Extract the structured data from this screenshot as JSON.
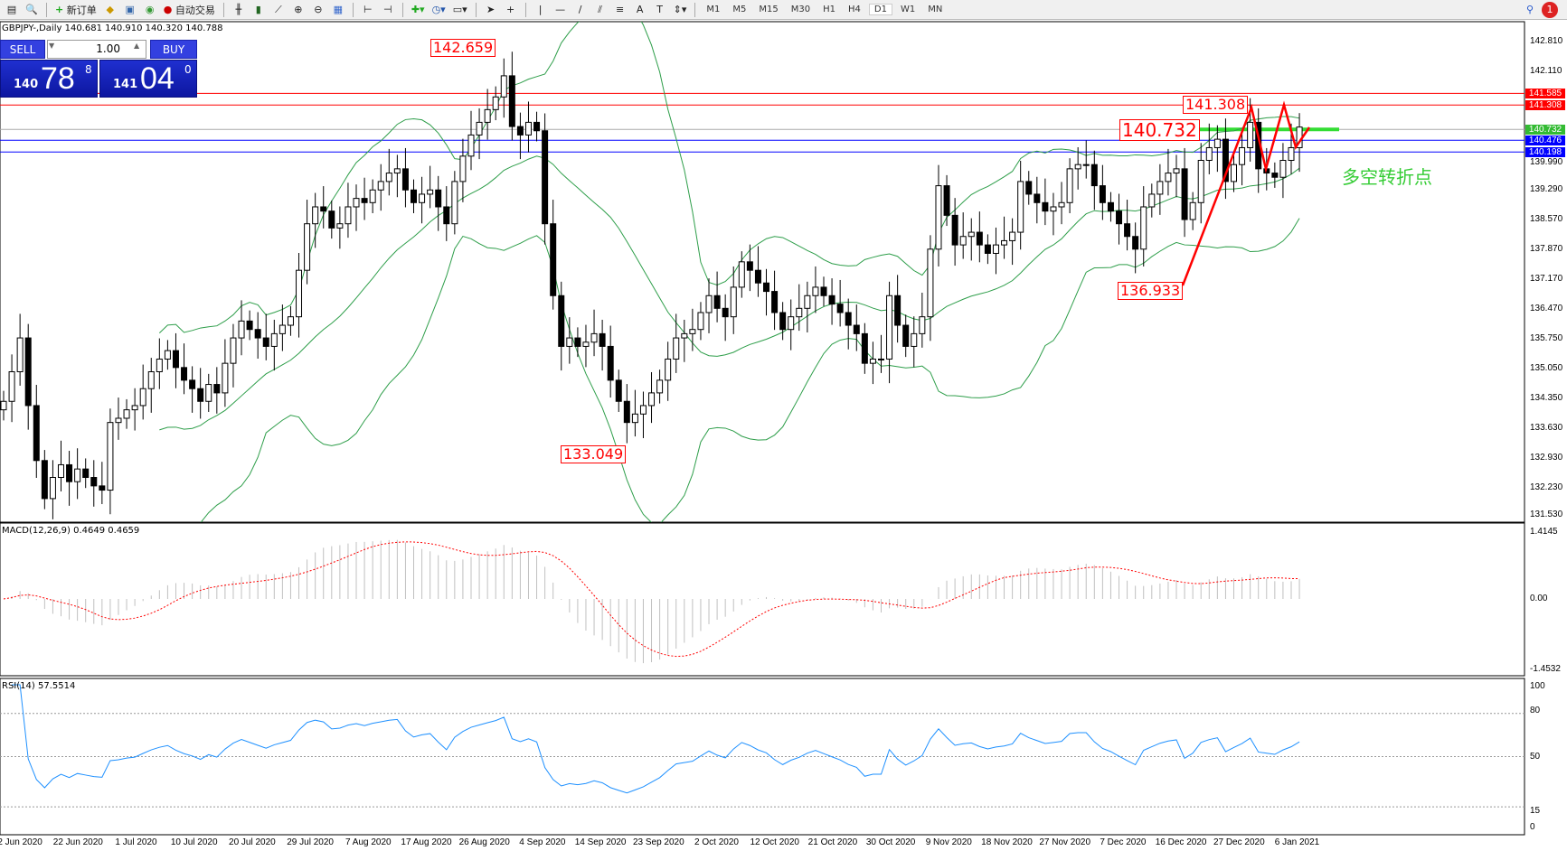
{
  "toolbar": {
    "new_order": "新订单",
    "autotrade": "自动交易",
    "timeframes": [
      "M1",
      "M5",
      "M15",
      "M30",
      "H1",
      "H4",
      "D1",
      "W1",
      "MN"
    ],
    "active_timeframe": "D1",
    "notifications": "1"
  },
  "chart": {
    "title": "GBPJPY-,Daily  140.681 140.910 140.320 140.788"
  },
  "trade": {
    "sell": "SELL",
    "buy": "BUY",
    "lot": "1.00",
    "bid_big": "140",
    "bid_main": "78",
    "bid_sup": "8",
    "ask_big": "141",
    "ask_main": "04",
    "ask_sup": "0"
  },
  "price_axis": [
    "142.810",
    "142.110",
    "139.990",
    "139.290",
    "138.570",
    "137.870",
    "137.170",
    "136.470",
    "135.750",
    "135.050",
    "134.350",
    "133.630",
    "132.930",
    "132.230",
    "131.530"
  ],
  "level_tags": [
    {
      "v": "141.585",
      "color": "#ff0000"
    },
    {
      "v": "141.308",
      "color": "#ff0000"
    },
    {
      "v": "140.732",
      "color": "#33bb33"
    },
    {
      "v": "140.476",
      "color": "#0000ff"
    },
    {
      "v": "140.198",
      "color": "#0000ff"
    }
  ],
  "annotations": {
    "high": "142.659",
    "low": "133.049",
    "low2": "136.933",
    "res": "141.308",
    "pivot": "140.732",
    "note": "多空转折点"
  },
  "macd": {
    "label": "MACD(12,26,9) 0.4649 0.4659",
    "max": "1.4145",
    "zero": "0.00",
    "min": "-1.4532"
  },
  "rsi": {
    "label": "RSI(14) 57.5514",
    "levels": [
      "100",
      "80",
      "50",
      "15",
      "0"
    ]
  },
  "dates": [
    "2 Jun 2020",
    "22 Jun 2020",
    "1 Jul 2020",
    "10 Jul 2020",
    "20 Jul 2020",
    "29 Jul 2020",
    "7 Aug 2020",
    "17 Aug 2020",
    "26 Aug 2020",
    "4 Sep 2020",
    "14 Sep 2020",
    "23 Sep 2020",
    "2 Oct 2020",
    "12 Oct 2020",
    "21 Oct 2020",
    "30 Oct 2020",
    "9 Nov 2020",
    "18 Nov 2020",
    "27 Nov 2020",
    "7 Dec 2020",
    "16 Dec 2020",
    "27 Dec 2020",
    "6 Jan 2021"
  ],
  "chart_data": {
    "type": "candlestick",
    "symbol": "GBPJPY-",
    "timeframe": "Daily",
    "ylim": [
      131.53,
      142.81
    ],
    "close": [
      134.3,
      135.0,
      135.8,
      134.2,
      132.9,
      132.0,
      132.5,
      132.8,
      132.4,
      132.7,
      132.5,
      132.3,
      132.2,
      133.8,
      133.9,
      134.1,
      134.2,
      134.6,
      135.0,
      135.3,
      135.5,
      135.1,
      134.8,
      134.6,
      134.3,
      134.7,
      134.5,
      135.2,
      135.8,
      136.2,
      136.0,
      135.8,
      135.6,
      135.9,
      136.1,
      136.3,
      137.4,
      138.5,
      138.9,
      138.8,
      138.4,
      138.5,
      138.9,
      139.1,
      139.0,
      139.3,
      139.5,
      139.7,
      139.8,
      139.3,
      139.0,
      139.2,
      139.3,
      138.9,
      138.5,
      139.5,
      140.1,
      140.6,
      140.9,
      141.2,
      141.5,
      142.0,
      140.8,
      140.6,
      140.9,
      140.7,
      138.5,
      136.8,
      135.6,
      135.8,
      135.6,
      135.7,
      135.9,
      135.6,
      134.8,
      134.3,
      133.8,
      134.0,
      134.2,
      134.5,
      134.8,
      135.3,
      135.8,
      135.9,
      136.0,
      136.4,
      136.8,
      136.5,
      136.3,
      137.0,
      137.6,
      137.4,
      137.1,
      136.9,
      136.4,
      136.0,
      136.3,
      136.5,
      136.8,
      137.0,
      136.8,
      136.6,
      136.4,
      136.1,
      135.9,
      135.2,
      135.3,
      135.3,
      136.8,
      136.1,
      135.6,
      135.9,
      136.3,
      137.9,
      139.4,
      138.7,
      138.0,
      138.2,
      138.3,
      138.0,
      137.8,
      138.0,
      138.1,
      138.3,
      139.5,
      139.2,
      139.0,
      138.8,
      138.9,
      139.0,
      139.8,
      139.9,
      139.9,
      139.4,
      139.0,
      138.8,
      138.5,
      138.2,
      137.9,
      138.9,
      139.2,
      139.5,
      139.7,
      139.8,
      138.6,
      139.0,
      140.0,
      140.3,
      140.5,
      139.5,
      139.9,
      140.3,
      140.9,
      139.8,
      139.7,
      139.6,
      140.0,
      140.3,
      140.788
    ],
    "levels": [
      141.585,
      141.308,
      140.732,
      140.476,
      140.198
    ],
    "indicators": [
      "Bollinger Bands (20,2)",
      "MACD(12,26,9)",
      "RSI(14)"
    ]
  },
  "colors": {
    "bands": "#2e9e4a",
    "macd_signal": "#ff0000",
    "rsi": "#1e90ff",
    "annotation": "#ff0000"
  }
}
